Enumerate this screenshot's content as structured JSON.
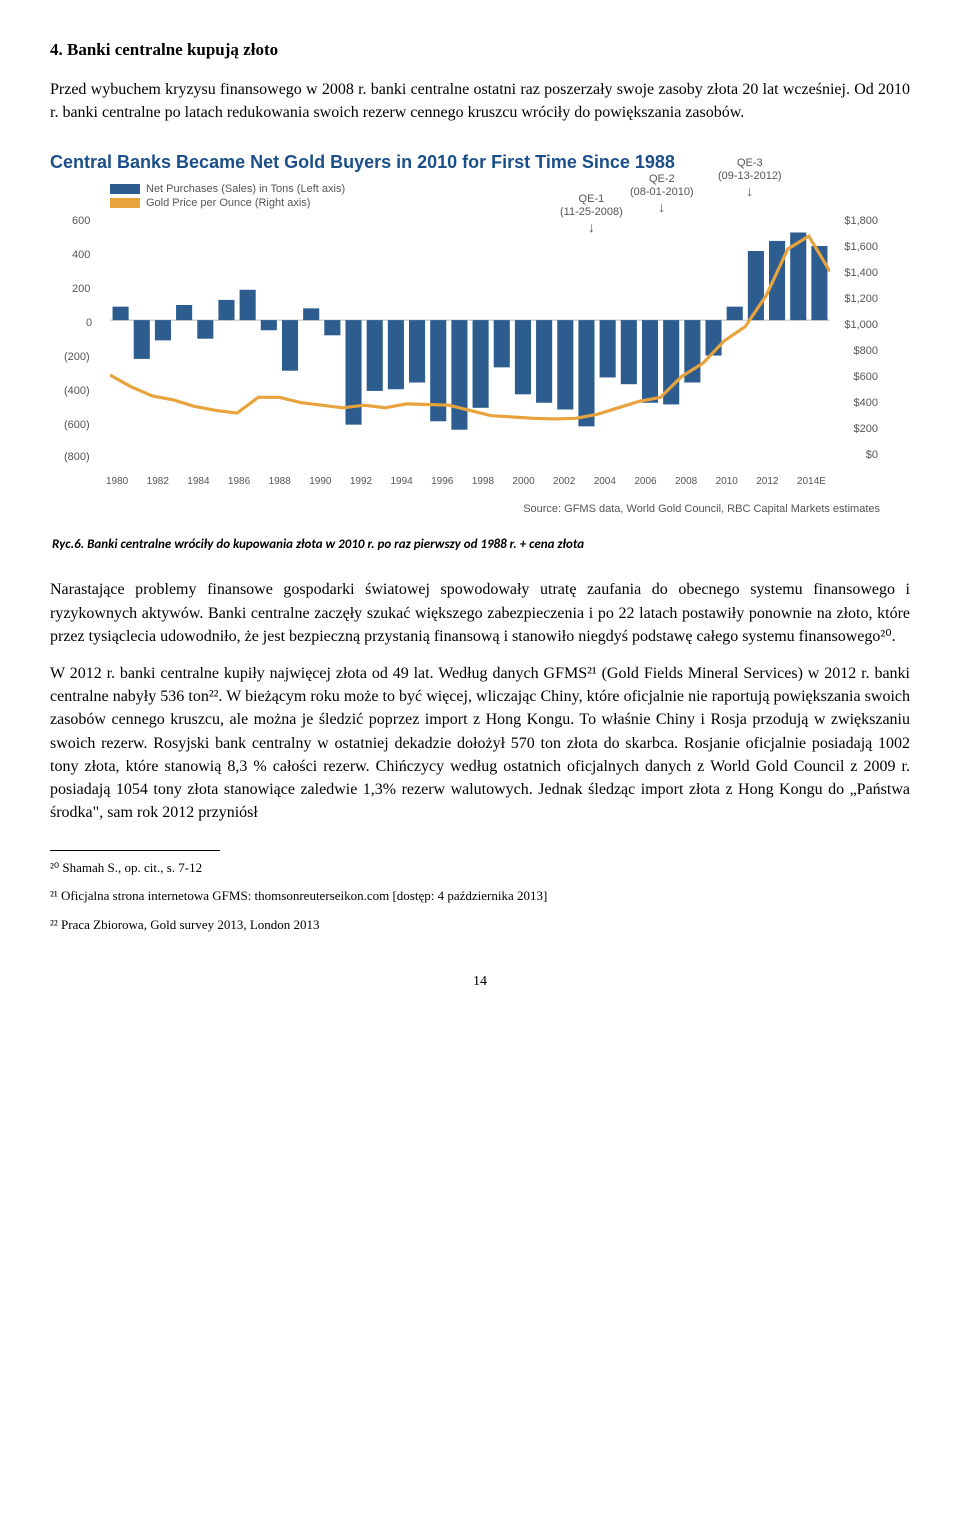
{
  "section": {
    "heading": "4. Banki centralne kupują złoto"
  },
  "para1": "Przed wybuchem kryzysu finansowego w 2008 r. banki centralne ostatni raz poszerzały swoje zasoby złota 20 lat wcześniej. Od 2010 r. banki centralne po latach redukowania swoich rezerw cennego kruszcu wróciły do powiększania zasobów.",
  "chart": {
    "title": "Central Banks Became Net Gold Buyers in 2010 for First Time Since 1988",
    "legend": {
      "series1": {
        "label": "Net Purchases (Sales) in Tons (Left axis)",
        "color": "#2c5d8e"
      },
      "series2": {
        "label": "Gold Price per Ounce (Right axis)",
        "color": "#e8a33d"
      }
    },
    "annotations": {
      "qe1": {
        "label": "QE-1",
        "date": "(11-25-2008)"
      },
      "qe2": {
        "label": "QE-2",
        "date": "(08-01-2010)"
      },
      "qe3": {
        "label": "QE-3",
        "date": "(09-13-2012)"
      }
    },
    "y_left": {
      "min": -800,
      "max": 600,
      "step": 200,
      "ticks": [
        "600",
        "400",
        "200",
        "0",
        "(200)",
        "(400)",
        "(600)",
        "(800)"
      ]
    },
    "y_right": {
      "min": 0,
      "max": 1800,
      "step": 200,
      "ticks": [
        "$1,800",
        "$1,600",
        "$1,400",
        "$1,200",
        "$1,000",
        "$800",
        "$600",
        "$400",
        "$200",
        "$0"
      ]
    },
    "x_labels": [
      "1980",
      "1982",
      "1984",
      "1986",
      "1988",
      "1990",
      "1992",
      "1994",
      "1996",
      "1998",
      "2000",
      "2002",
      "2004",
      "2006",
      "2008",
      "2010",
      "2012",
      "2014E"
    ],
    "bars": [
      80,
      -230,
      -120,
      90,
      -110,
      120,
      180,
      -60,
      -300,
      70,
      -90,
      -620,
      -420,
      -410,
      -370,
      -600,
      -650,
      -520,
      -280,
      -440,
      -490,
      -530,
      -630,
      -340,
      -380,
      -490,
      -500,
      -370,
      -210,
      80,
      410,
      470,
      520,
      440
    ],
    "bar_color": "#2c5d8e",
    "line": [
      610,
      520,
      450,
      420,
      370,
      340,
      320,
      440,
      440,
      400,
      380,
      360,
      380,
      360,
      390,
      385,
      380,
      340,
      300,
      290,
      280,
      275,
      280,
      310,
      360,
      410,
      440,
      600,
      700,
      870,
      980,
      1220,
      1570,
      1670,
      1400
    ],
    "line_color": "#e8a33d",
    "background": "#ffffff",
    "source": "Source: GFMS data, World Gold Council, RBC Capital Markets estimates"
  },
  "fig_caption": "Ryc.6.  Banki centralne wróciły do kupowania złota w 2010 r. po raz pierwszy od 1988 r. + cena złota",
  "para2": "Narastające problemy finansowe gospodarki światowej spowodowały utratę zaufania do obecnego systemu finansowego i ryzykownych aktywów. Banki centralne zaczęły szukać większego zabezpieczenia i po 22 latach postawiły ponownie na złoto, które przez tysiąclecia udowodniło, że jest bezpieczną przystanią finansową i stanowiło niegdyś podstawę całego systemu finansowego²⁰.",
  "para3": "W 2012 r. banki centralne kupiły najwięcej złota od 49 lat. Według danych GFMS²¹ (Gold Fields Mineral Services) w 2012 r. banki centralne nabyły 536 ton²². W bieżącym roku może to być więcej, wliczając Chiny, które oficjalnie nie raportują powiększania swoich zasobów cennego kruszcu, ale można je śledzić poprzez import z Hong Kongu. To właśnie Chiny i Rosja przodują w zwiększaniu swoich rezerw. Rosyjski bank centralny w ostatniej dekadzie dołożył 570 ton złota do skarbca. Rosjanie oficjalnie posiadają 1002 tony złota, które stanowią 8,3 % całości rezerw. Chińczycy według ostatnich oficjalnych danych z World Gold Council  z 2009 r. posiadają 1054 tony złota stanowiące zaledwie 1,3% rezerw walutowych. Jednak śledząc import złota z Hong Kongu do „Państwa środka\", sam rok 2012 przyniósł",
  "footnotes": {
    "f20": "²⁰ Shamah  S., op. cit., s. 7-12",
    "f21": "²¹ Oficjalna strona internetowa GFMS: thomsonreuterseikon.com  [dostęp: 4 października 2013]",
    "f22": "²² Praca Zbiorowa, Gold survey 2013, London 2013"
  },
  "page_number": "14"
}
